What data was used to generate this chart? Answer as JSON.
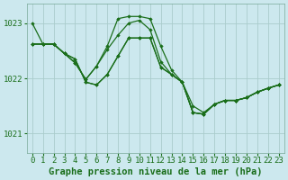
{
  "bg_color": "#cce8ee",
  "grid_color": "#aacccc",
  "line_color": "#1a6e1a",
  "marker_color": "#1a6e1a",
  "xlabel": "Graphe pression niveau de la mer (hPa)",
  "yticks": [
    1021,
    1022,
    1023
  ],
  "ylim": [
    1020.65,
    1023.35
  ],
  "xlim": [
    -0.5,
    23.5
  ],
  "series": [
    [
      1023.0,
      1022.62,
      1022.62,
      1022.45,
      1022.35,
      1021.93,
      1021.88,
      1022.07,
      1022.4,
      1022.73,
      1022.73,
      1022.73,
      1022.2,
      1022.07,
      1021.93,
      1021.38,
      1021.35,
      1021.53,
      1021.6,
      1021.6,
      1021.65,
      1021.75,
      1021.82,
      1021.88
    ],
    [
      1022.62,
      1022.62,
      1022.62,
      1022.45,
      1022.35,
      1021.93,
      1021.88,
      1022.07,
      1022.4,
      1022.73,
      1022.73,
      1022.73,
      1022.2,
      1022.07,
      1021.93,
      1021.38,
      1021.35,
      1021.53,
      1021.6,
      1021.6,
      1021.65,
      1021.75,
      1021.82,
      1021.88
    ],
    [
      1022.62,
      1022.62,
      1022.62,
      1022.45,
      1022.28,
      1021.98,
      1022.22,
      1022.58,
      1023.08,
      1023.12,
      1023.12,
      1023.08,
      1022.58,
      1022.15,
      1021.93,
      1021.5,
      1021.38,
      1021.53,
      1021.6,
      1021.6,
      1021.65,
      1021.75,
      1021.82,
      1021.88
    ],
    [
      1022.62,
      1022.62,
      1022.62,
      1022.45,
      1022.28,
      1021.98,
      1022.22,
      1022.52,
      1022.78,
      1023.0,
      1023.05,
      1022.88,
      1022.3,
      1022.07,
      1021.93,
      1021.38,
      1021.35,
      1021.53,
      1021.6,
      1021.6,
      1021.65,
      1021.75,
      1021.82,
      1021.88
    ]
  ],
  "xticks": [
    0,
    1,
    2,
    3,
    4,
    5,
    6,
    7,
    8,
    9,
    10,
    11,
    12,
    13,
    14,
    15,
    16,
    17,
    18,
    19,
    20,
    21,
    22,
    23
  ],
  "tick_fontsize": 6.5,
  "xlabel_fontsize": 7.5
}
